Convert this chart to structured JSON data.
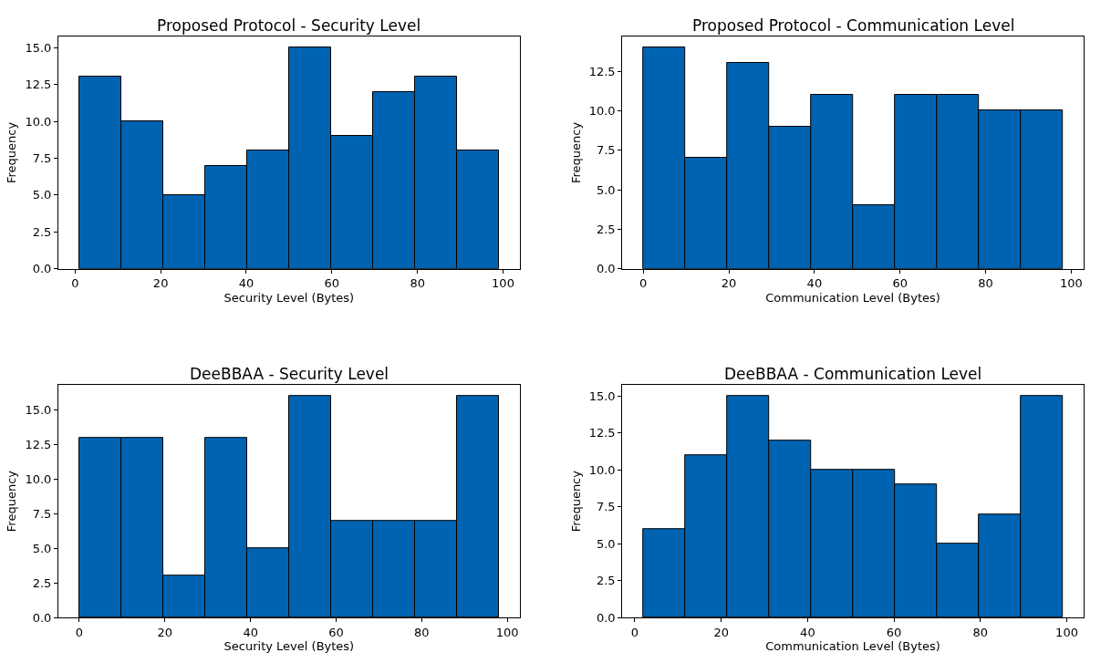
{
  "chart_data": [
    {
      "type": "histogram",
      "title": "Proposed Protocol - Security Level",
      "xlabel": "Security Level (Bytes)",
      "ylabel": "Frequency",
      "color": "#0063b1",
      "bins": [
        1,
        10.8,
        20.6,
        30.4,
        40.2,
        50,
        59.8,
        69.6,
        79.4,
        89.2,
        99
      ],
      "values": [
        13,
        10,
        5,
        7,
        8,
        15,
        9,
        12,
        13,
        8
      ],
      "xlim": [
        -3.9,
        103.9
      ],
      "xticks": [
        0,
        20,
        40,
        60,
        80,
        100
      ],
      "ylim": [
        0,
        15.75
      ],
      "yticks": [
        {
          "value": 0,
          "label": "0.0"
        },
        {
          "value": 2.5,
          "label": "2.5"
        },
        {
          "value": 5,
          "label": "5.0"
        },
        {
          "value": 7.5,
          "label": "7.5"
        },
        {
          "value": 10,
          "label": "10.0"
        },
        {
          "value": 12.5,
          "label": "12.5"
        },
        {
          "value": 15,
          "label": "15.0"
        }
      ],
      "grid": false
    },
    {
      "type": "histogram",
      "title": "Proposed Protocol - Communication Level",
      "xlabel": "Communication Level (Bytes)",
      "ylabel": "Frequency",
      "color": "#0063b1",
      "bins": [
        0,
        9.8,
        19.6,
        29.4,
        39.2,
        49,
        58.8,
        68.6,
        78.4,
        88.2,
        98
      ],
      "values": [
        14,
        7,
        13,
        9,
        11,
        4,
        11,
        11,
        10,
        10
      ],
      "xlim": [
        -4.9,
        102.9
      ],
      "xticks": [
        0,
        20,
        40,
        60,
        80,
        100
      ],
      "ylim": [
        0,
        14.7
      ],
      "yticks": [
        {
          "value": 0,
          "label": "0.0"
        },
        {
          "value": 2.5,
          "label": "2.5"
        },
        {
          "value": 5,
          "label": "5.0"
        },
        {
          "value": 7.5,
          "label": "7.5"
        },
        {
          "value": 10,
          "label": "10.0"
        },
        {
          "value": 12.5,
          "label": "12.5"
        }
      ],
      "grid": false
    },
    {
      "type": "histogram",
      "title": "DeeBBAA - Security Level",
      "xlabel": "Security Level (Bytes)",
      "ylabel": "Frequency",
      "color": "#0063b1",
      "bins": [
        0,
        9.8,
        19.6,
        29.4,
        39.2,
        49,
        58.8,
        68.6,
        78.4,
        88.2,
        98
      ],
      "values": [
        13,
        13,
        3,
        13,
        5,
        16,
        7,
        7,
        7,
        16
      ],
      "xlim": [
        -4.9,
        102.9
      ],
      "xticks": [
        0,
        20,
        40,
        60,
        80,
        100
      ],
      "ylim": [
        0,
        16.8
      ],
      "yticks": [
        {
          "value": 0,
          "label": "0.0"
        },
        {
          "value": 2.5,
          "label": "2.5"
        },
        {
          "value": 5,
          "label": "5.0"
        },
        {
          "value": 7.5,
          "label": "7.5"
        },
        {
          "value": 10,
          "label": "10.0"
        },
        {
          "value": 12.5,
          "label": "12.5"
        },
        {
          "value": 15,
          "label": "15.0"
        }
      ],
      "grid": false
    },
    {
      "type": "histogram",
      "title": "DeeBBAA - Communication Level",
      "xlabel": "Communication Level (Bytes)",
      "ylabel": "Frequency",
      "color": "#0063b1",
      "bins": [
        2,
        11.7,
        21.4,
        31.1,
        40.8,
        50.5,
        60.2,
        69.9,
        79.6,
        89.3,
        99
      ],
      "values": [
        6,
        11,
        15,
        12,
        10,
        10,
        9,
        5,
        7,
        15
      ],
      "xlim": [
        -2.9,
        103.9
      ],
      "xticks": [
        0,
        20,
        40,
        60,
        80,
        100
      ],
      "ylim": [
        0,
        15.75
      ],
      "yticks": [
        {
          "value": 0,
          "label": "0.0"
        },
        {
          "value": 2.5,
          "label": "2.5"
        },
        {
          "value": 5,
          "label": "5.0"
        },
        {
          "value": 7.5,
          "label": "7.5"
        },
        {
          "value": 10,
          "label": "10.0"
        },
        {
          "value": 12.5,
          "label": "12.5"
        },
        {
          "value": 15,
          "label": "15.0"
        }
      ],
      "grid": false
    }
  ]
}
